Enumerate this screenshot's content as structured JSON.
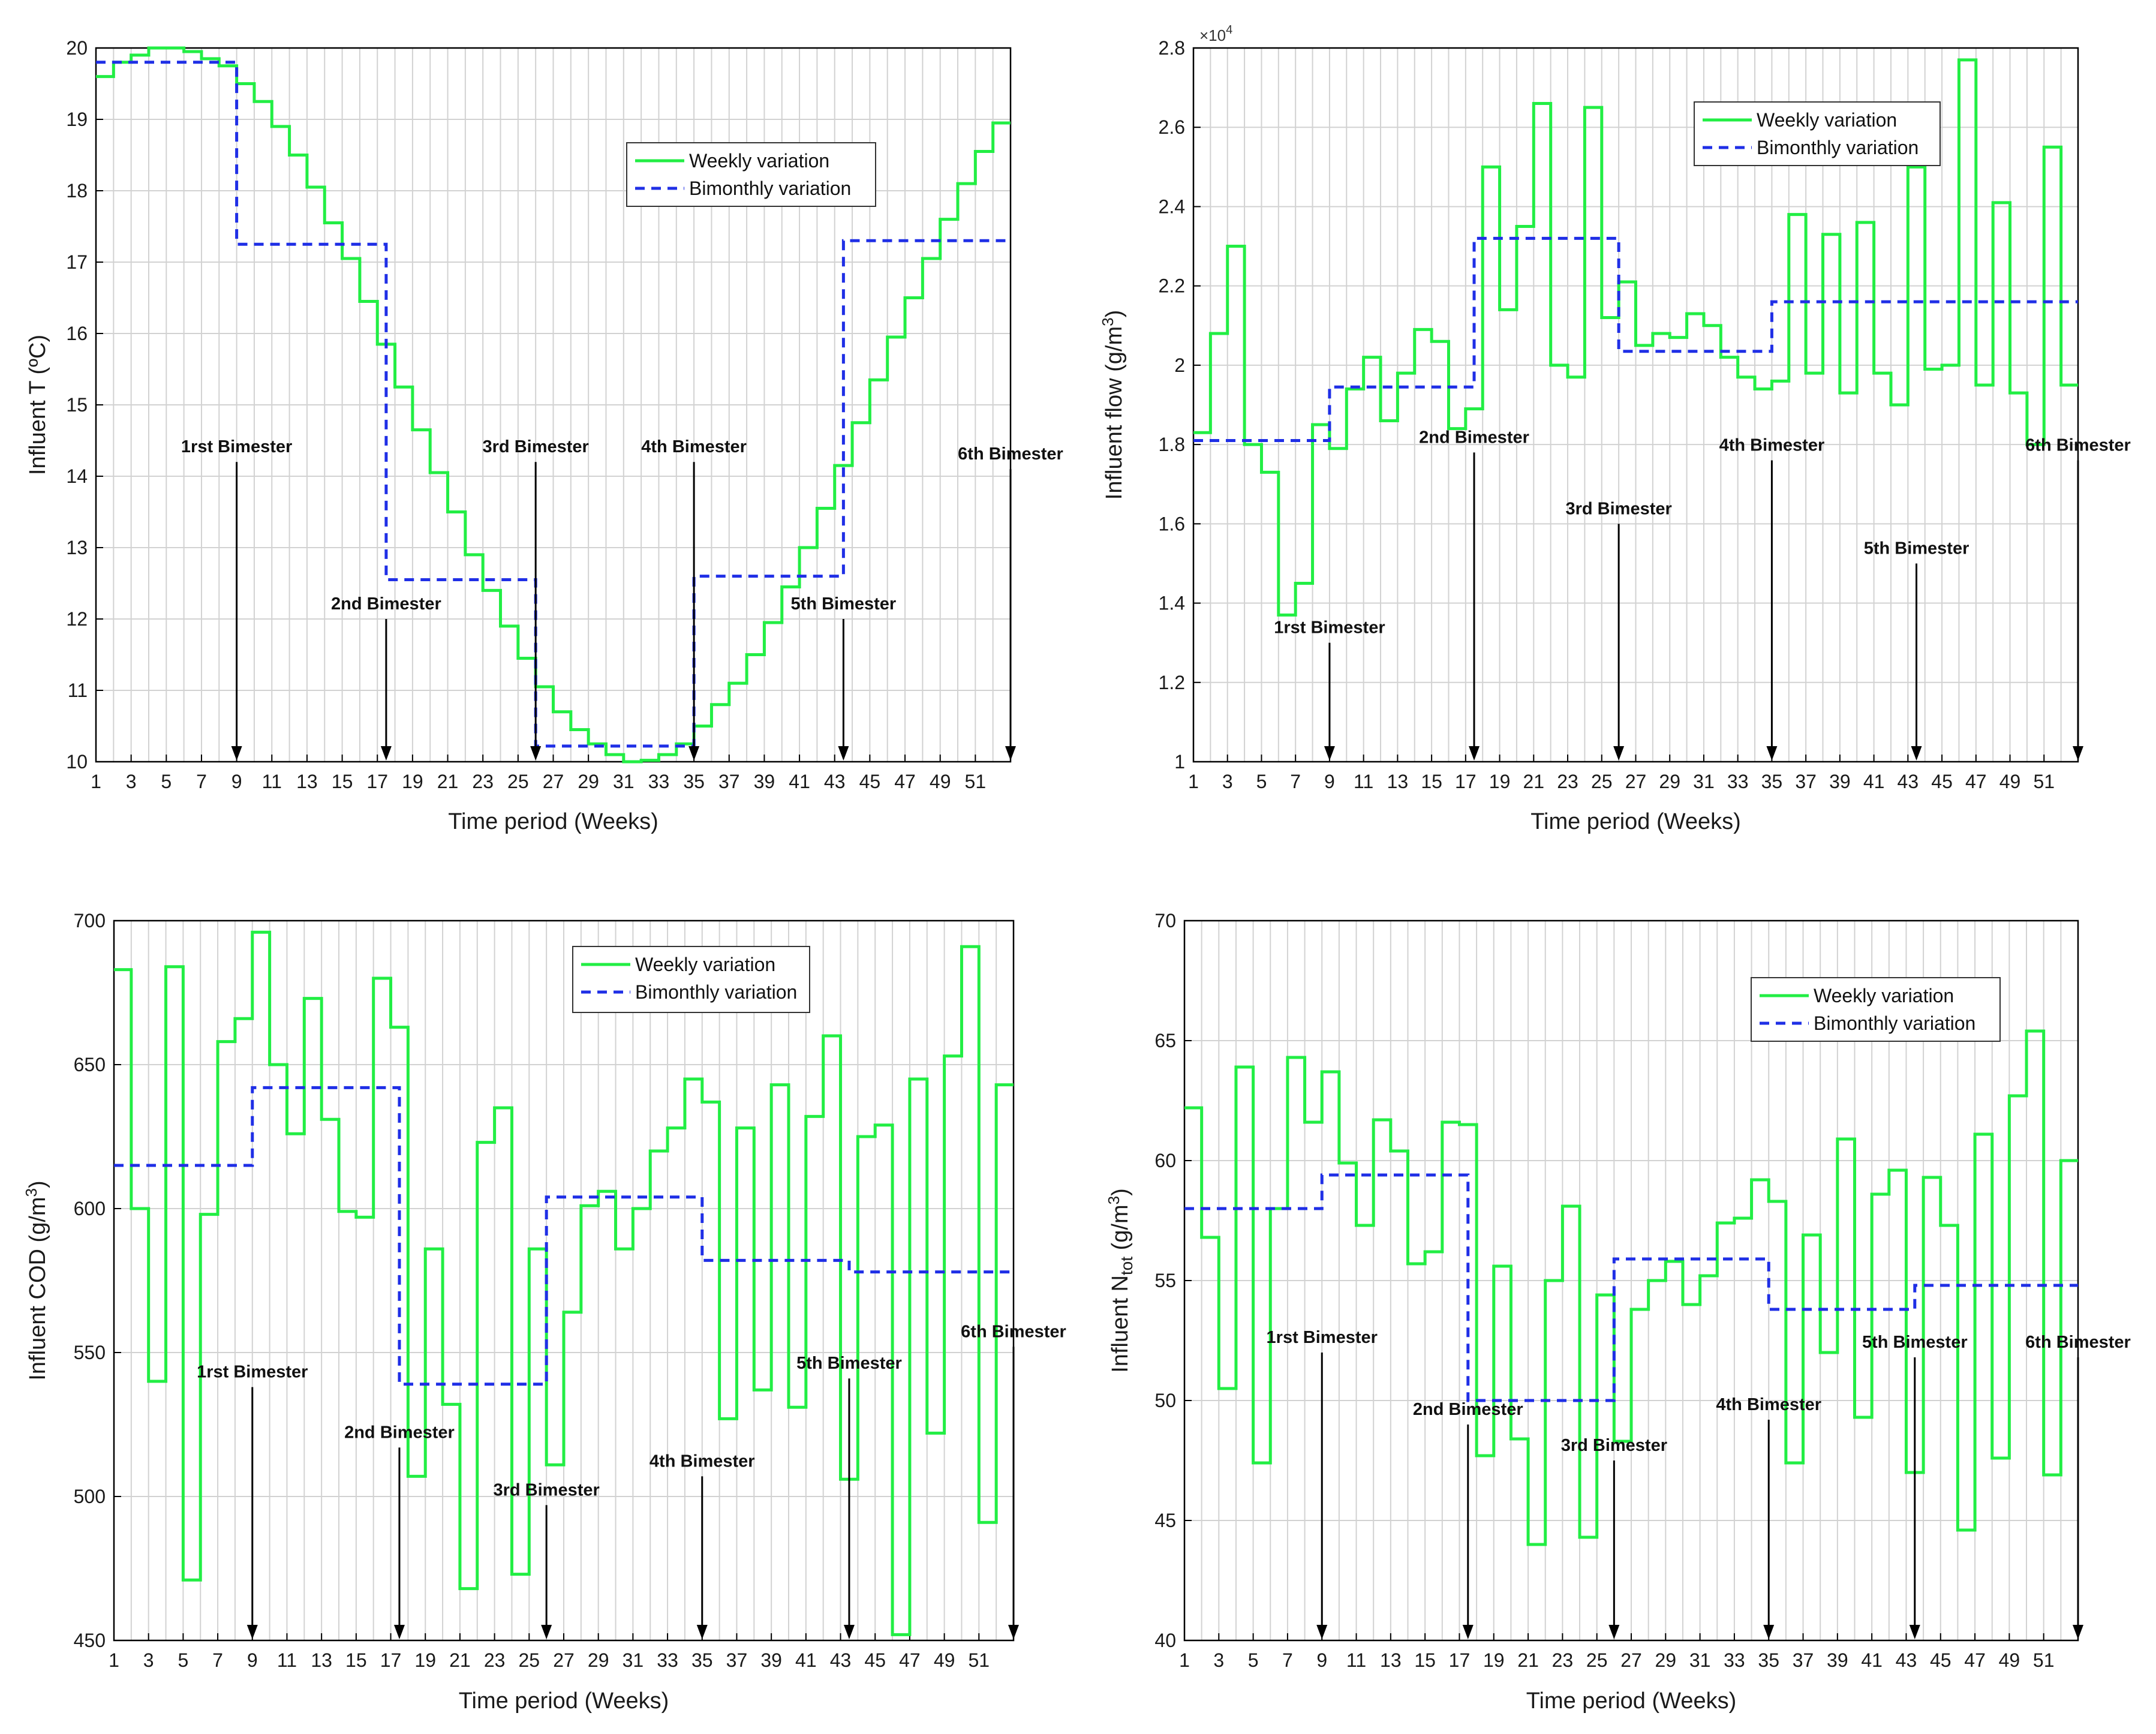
{
  "weeks_x": [
    1,
    2,
    3,
    4,
    5,
    6,
    7,
    8,
    9,
    10,
    11,
    12,
    13,
    14,
    15,
    16,
    17,
    18,
    19,
    20,
    21,
    22,
    23,
    24,
    25,
    26,
    27,
    28,
    29,
    30,
    31,
    32,
    33,
    34,
    35,
    36,
    37,
    38,
    39,
    40,
    41,
    42,
    43,
    44,
    45,
    46,
    47,
    48,
    49,
    50,
    51,
    52
  ],
  "colors": {
    "weekly": "#22ee44",
    "bimonthly": "#1f2fe6"
  },
  "chart_data": [
    {
      "id": "temperature",
      "type": "line",
      "step": true,
      "ylabel": "Influent T (ºC)",
      "xlabel": "Time period (Weeks)",
      "xlim": [
        1,
        53
      ],
      "ylim": [
        10,
        20
      ],
      "yticks": [
        "10",
        "11",
        "12",
        "13",
        "14",
        "15",
        "16",
        "17",
        "18",
        "19",
        "20"
      ],
      "xticks": [
        "1",
        "3",
        "5",
        "7",
        "9",
        "11",
        "13",
        "15",
        "17",
        "19",
        "21",
        "23",
        "25",
        "27",
        "29",
        "31",
        "33",
        "35",
        "37",
        "39",
        "41",
        "43",
        "45",
        "47",
        "49",
        "51"
      ],
      "legend": {
        "weekly": "Weekly variation",
        "bimonthly": "Bimonthly variation",
        "placement": "center-right"
      },
      "series": [
        {
          "name": "Weekly variation",
          "style": "weekly",
          "values": [
            19.6,
            19.8,
            19.9,
            20.0,
            20.0,
            19.95,
            19.85,
            19.75,
            19.5,
            19.25,
            18.9,
            18.5,
            18.05,
            17.55,
            17.05,
            16.45,
            15.85,
            15.25,
            14.65,
            14.05,
            13.5,
            12.9,
            12.4,
            11.9,
            11.45,
            11.05,
            10.7,
            10.45,
            10.25,
            10.1,
            10.0,
            10.02,
            10.1,
            10.25,
            10.5,
            10.8,
            11.1,
            11.5,
            11.95,
            12.45,
            13.0,
            13.55,
            14.15,
            14.75,
            15.35,
            15.95,
            16.5,
            17.05,
            17.6,
            18.1,
            18.55,
            18.95
          ],
          "end_value": 19.3
        },
        {
          "name": "Bimonthly variation",
          "style": "bimonthly",
          "steps": [
            [
              1,
              19.8
            ],
            [
              9,
              17.25
            ],
            [
              17.5,
              12.55
            ],
            [
              26,
              10.22
            ],
            [
              35,
              12.6
            ],
            [
              43.5,
              17.3
            ],
            [
              53,
              17.3
            ]
          ]
        }
      ],
      "annotations": [
        {
          "text": "1rst Bimester",
          "x": 9,
          "y": 14.2
        },
        {
          "text": "2nd Bimester",
          "x": 17.5,
          "y": 12.0
        },
        {
          "text": "3rd Bimester",
          "x": 26,
          "y": 14.2
        },
        {
          "text": "4th Bimester",
          "x": 35,
          "y": 14.2
        },
        {
          "text": "5th Bimester",
          "x": 43.5,
          "y": 12.0
        },
        {
          "text": "6th Bimester",
          "x": 53,
          "y": 14.1
        }
      ]
    },
    {
      "id": "flow",
      "type": "line",
      "step": true,
      "ylabel": "Influent flow (g/m3)",
      "xlabel": "Time period (Weeks)",
      "exponent": "x 10^4",
      "xlim": [
        1,
        53
      ],
      "ylim": [
        1.0,
        2.8
      ],
      "yticks": [
        "1",
        "1.2",
        "1.4",
        "1.6",
        "1.8",
        "2",
        "2.2",
        "2.4",
        "2.6",
        "2.8"
      ],
      "xticks": [
        "1",
        "3",
        "5",
        "7",
        "9",
        "11",
        "13",
        "15",
        "17",
        "19",
        "21",
        "23",
        "25",
        "27",
        "29",
        "31",
        "33",
        "35",
        "37",
        "39",
        "41",
        "43",
        "45",
        "47",
        "49",
        "51"
      ],
      "legend": {
        "weekly": "Weekly variation",
        "bimonthly": "Bimonthly variation",
        "placement": "top-right"
      },
      "series": [
        {
          "name": "Weekly variation",
          "style": "weekly",
          "values": [
            1.83,
            2.08,
            2.3,
            1.8,
            1.73,
            1.37,
            1.45,
            1.85,
            1.79,
            1.94,
            2.02,
            1.86,
            1.98,
            2.09,
            2.06,
            1.84,
            1.89,
            2.5,
            2.14,
            2.35,
            2.66,
            2.0,
            1.97,
            2.65,
            2.12,
            2.21,
            2.05,
            2.08,
            2.07,
            2.13,
            2.1,
            2.02,
            1.97,
            1.94,
            1.96,
            2.38,
            1.98,
            2.33,
            1.93,
            2.36,
            1.98,
            1.9,
            2.5,
            1.99,
            2.0,
            2.77,
            1.95,
            2.41,
            1.93,
            1.8,
            2.55,
            1.95
          ],
          "end_value": 1.95
        },
        {
          "name": "Bimonthly variation",
          "style": "bimonthly",
          "steps": [
            [
              1,
              1.81
            ],
            [
              9,
              1.945
            ],
            [
              17.5,
              2.32
            ],
            [
              26,
              2.035
            ],
            [
              35,
              2.16
            ],
            [
              53,
              2.16
            ]
          ]
        }
      ],
      "annotations": [
        {
          "text": "1rst Bimester",
          "x": 9,
          "y": 1.3
        },
        {
          "text": "2nd Bimester",
          "x": 17.5,
          "y": 1.78
        },
        {
          "text": "3rd Bimester",
          "x": 26,
          "y": 1.6
        },
        {
          "text": "4th Bimester",
          "x": 35,
          "y": 1.76
        },
        {
          "text": "5th Bimester",
          "x": 43.5,
          "y": 1.5
        },
        {
          "text": "6th Bimester",
          "x": 53,
          "y": 1.76
        }
      ]
    },
    {
      "id": "cod",
      "type": "line",
      "step": true,
      "ylabel": "Influent COD (g/m3)",
      "xlabel": "Time period (Weeks)",
      "xlim": [
        1,
        53
      ],
      "ylim": [
        450,
        700
      ],
      "yticks": [
        "450",
        "500",
        "550",
        "600",
        "650",
        "700"
      ],
      "xticks": [
        "1",
        "3",
        "5",
        "7",
        "9",
        "11",
        "13",
        "15",
        "17",
        "19",
        "21",
        "23",
        "25",
        "27",
        "29",
        "31",
        "33",
        "35",
        "37",
        "39",
        "41",
        "43",
        "45",
        "47",
        "49",
        "51"
      ],
      "legend": {
        "weekly": "Weekly variation",
        "bimonthly": "Bimonthly variation",
        "placement": "top-center"
      },
      "series": [
        {
          "name": "Weekly variation",
          "style": "weekly",
          "values": [
            683,
            600,
            540,
            684,
            471,
            598,
            658,
            666,
            696,
            650,
            626,
            673,
            631,
            599,
            597,
            680,
            663,
            507,
            586,
            532,
            468,
            623,
            635,
            473,
            586,
            511,
            564,
            601,
            606,
            586,
            600,
            620,
            628,
            645,
            637,
            527,
            628,
            537,
            643,
            531,
            632,
            660,
            506,
            625,
            629,
            452,
            645,
            522,
            653,
            691,
            491,
            643
          ],
          "end_value": 643
        },
        {
          "name": "Bimonthly variation",
          "style": "bimonthly",
          "steps": [
            [
              1,
              615
            ],
            [
              9,
              642
            ],
            [
              17.5,
              539
            ],
            [
              26,
              604
            ],
            [
              35,
              582
            ],
            [
              43.5,
              578
            ],
            [
              53,
              578
            ]
          ]
        }
      ],
      "annotations": [
        {
          "text": "1rst Bimester",
          "x": 9,
          "y": 538
        },
        {
          "text": "2nd Bimester",
          "x": 17.5,
          "y": 517
        },
        {
          "text": "3rd Bimester",
          "x": 26,
          "y": 497
        },
        {
          "text": "4th Bimester",
          "x": 35,
          "y": 507
        },
        {
          "text": "5th Bimester",
          "x": 43.5,
          "y": 541
        },
        {
          "text": "6th Bimester",
          "x": 53,
          "y": 552
        }
      ]
    },
    {
      "id": "ntot",
      "type": "line",
      "step": true,
      "ylabel": "Influent Ntot (g/m3)",
      "xlabel": "Time period (Weeks)",
      "xlim": [
        1,
        53
      ],
      "ylim": [
        40,
        70
      ],
      "yticks": [
        "40",
        "45",
        "50",
        "55",
        "60",
        "65",
        "70"
      ],
      "xticks": [
        "1",
        "3",
        "5",
        "7",
        "9",
        "11",
        "13",
        "15",
        "17",
        "19",
        "21",
        "23",
        "25",
        "27",
        "29",
        "31",
        "33",
        "35",
        "37",
        "39",
        "41",
        "43",
        "45",
        "47",
        "49",
        "51"
      ],
      "legend": {
        "weekly": "Weekly variation",
        "bimonthly": "Bimonthly variation",
        "placement": "top-right"
      },
      "series": [
        {
          "name": "Weekly variation",
          "style": "weekly",
          "values": [
            62.2,
            56.8,
            50.5,
            63.9,
            47.4,
            58.0,
            64.3,
            61.6,
            63.7,
            59.9,
            57.3,
            61.7,
            60.4,
            55.7,
            56.2,
            61.6,
            61.5,
            47.7,
            55.6,
            48.4,
            44.0,
            55.0,
            58.1,
            44.3,
            54.4,
            48.3,
            53.8,
            55.0,
            55.8,
            54.0,
            55.2,
            57.4,
            57.6,
            59.2,
            58.3,
            47.4,
            56.9,
            52.0,
            60.9,
            49.3,
            58.6,
            59.6,
            47.0,
            59.3,
            57.3,
            44.6,
            61.1,
            47.6,
            62.7,
            65.4,
            46.9,
            60.0
          ],
          "end_value": 60.0
        },
        {
          "name": "Bimonthly variation",
          "style": "bimonthly",
          "steps": [
            [
              1,
              58.0
            ],
            [
              9,
              59.4
            ],
            [
              17.5,
              50.0
            ],
            [
              26,
              55.9
            ],
            [
              35,
              53.8
            ],
            [
              43.5,
              54.8
            ],
            [
              53,
              54.8
            ]
          ]
        }
      ],
      "annotations": [
        {
          "text": "1rst Bimester",
          "x": 9,
          "y": 52.0
        },
        {
          "text": "2nd Bimester",
          "x": 17.5,
          "y": 49.0
        },
        {
          "text": "3rd Bimester",
          "x": 26,
          "y": 47.5
        },
        {
          "text": "4th Bimester",
          "x": 35,
          "y": 49.2
        },
        {
          "text": "5th Bimester",
          "x": 43.5,
          "y": 51.8
        },
        {
          "text": "6th Bimester",
          "x": 53,
          "y": 51.8
        }
      ]
    }
  ]
}
